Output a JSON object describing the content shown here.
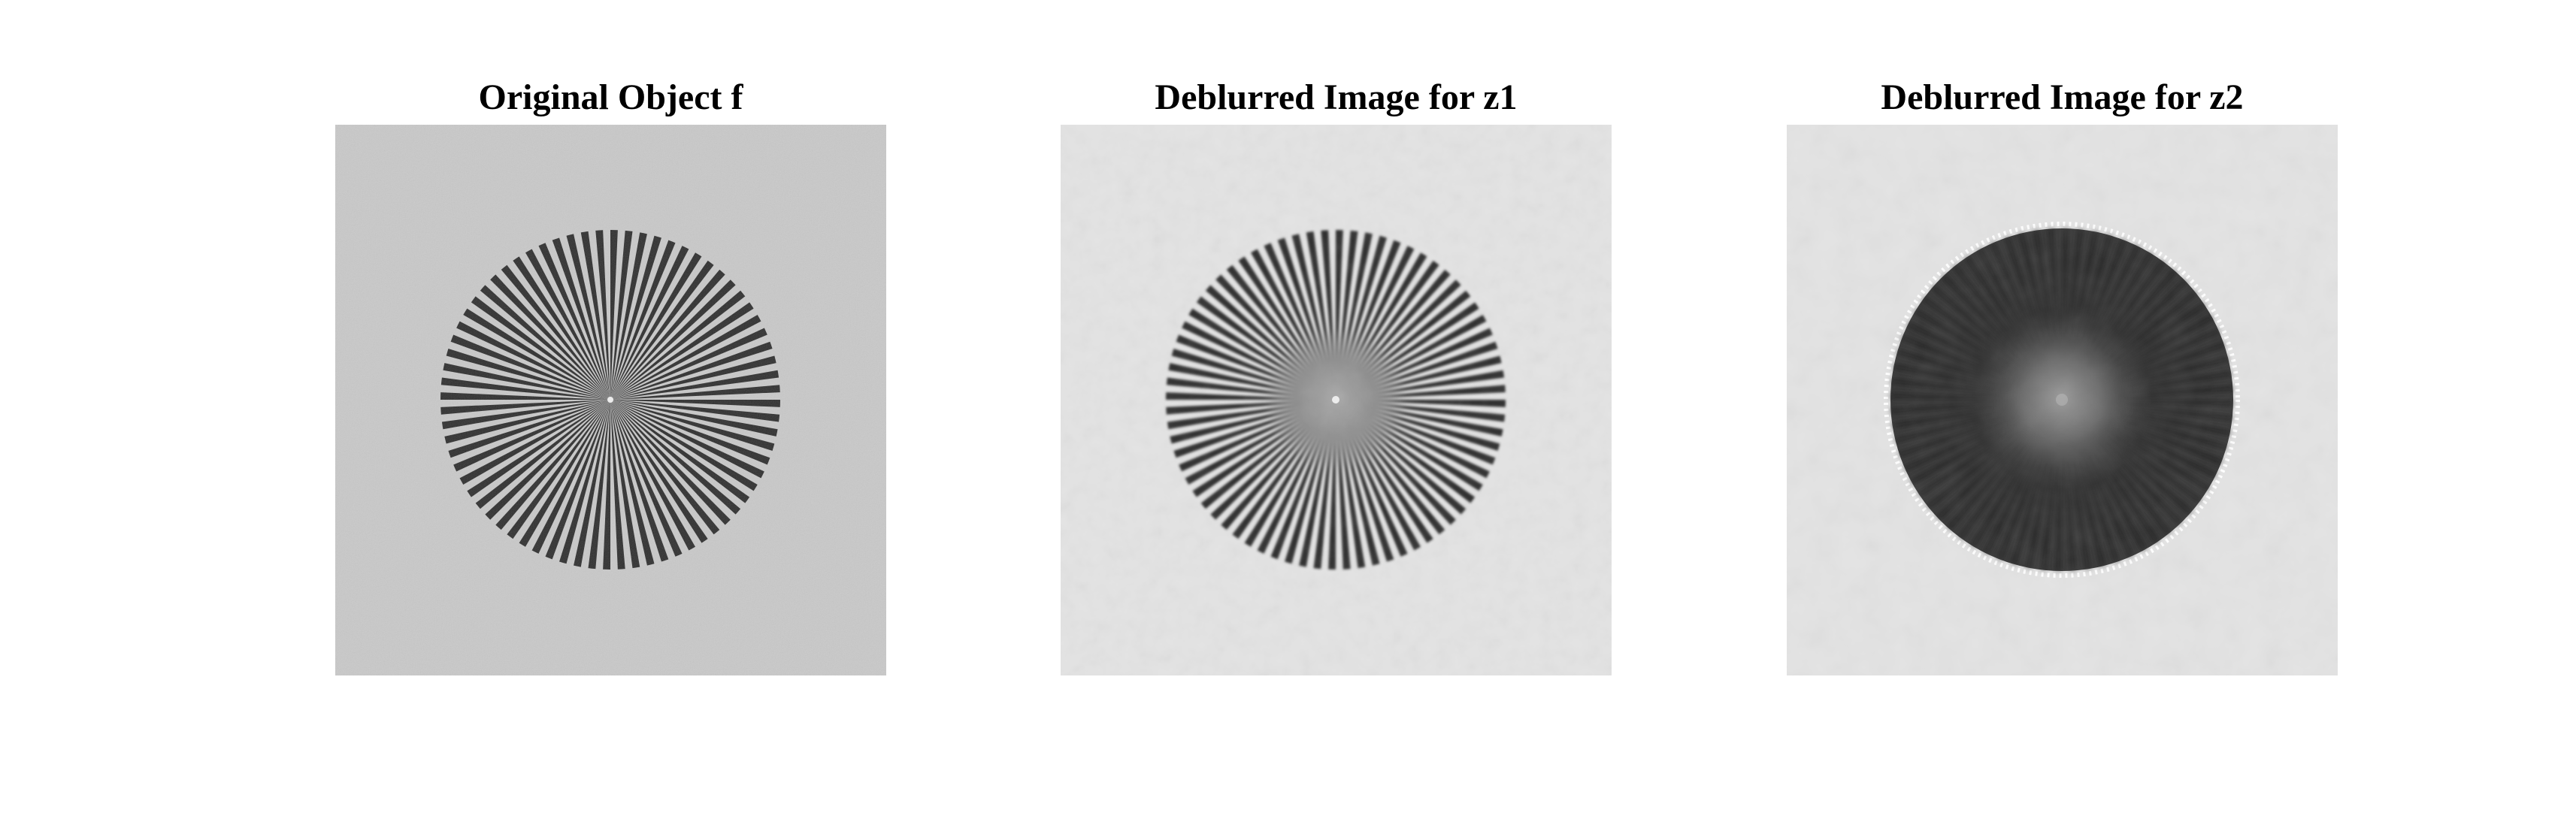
{
  "figure": {
    "panels": [
      {
        "title": "Original Object f",
        "variant": "original"
      },
      {
        "title": "Deblurred Image for z1",
        "variant": "deblur-z1"
      },
      {
        "title": "Deblurred Image for z2",
        "variant": "deblur-z2"
      }
    ],
    "spokes": 72,
    "colors": {
      "background_original": "#c9c9c9",
      "background_deblurred": "#e3e3e3",
      "spoke_dark": "#2e2e2e",
      "hub_z2": "#3a3a3a",
      "halo_z2": "#ffffff"
    }
  }
}
